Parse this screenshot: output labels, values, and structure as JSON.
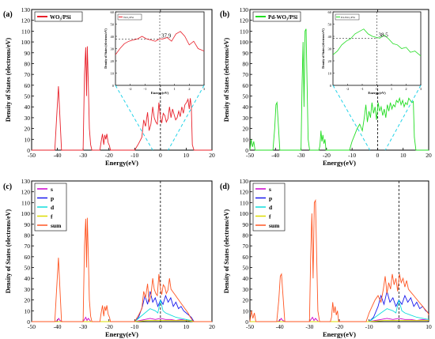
{
  "chart_data": [
    {
      "panel_label": "(a)",
      "type": "line",
      "xlabel": "Energy(eV)",
      "ylabel": "Density of States (electrons/eV)",
      "xlim": [
        -50,
        20
      ],
      "ylim": [
        0,
        130
      ],
      "xticks": [
        -50,
        -40,
        -30,
        -20,
        -10,
        0,
        10,
        20
      ],
      "yticks": [
        0,
        10,
        20,
        30,
        40,
        50,
        60,
        70,
        80,
        90,
        100,
        110,
        120,
        130
      ],
      "legend": [
        "WO₃/PSi"
      ],
      "series": [
        {
          "name": "WO₃/PSi",
          "color": "#e8202a",
          "x": [
            -50,
            -41,
            -40.3,
            -39.6,
            -39,
            -38.4,
            -30,
            -29.5,
            -29,
            -28.7,
            -28.4,
            -28,
            -27.6,
            -27.1,
            -26.6,
            -23.5,
            -23,
            -22.5,
            -22,
            -21.6,
            -21.2,
            -20.8,
            -20.3,
            -19.8,
            -19.4,
            -10,
            -8.5,
            -7.2,
            -6.5,
            -5.8,
            -5,
            -4.4,
            -3.7,
            -3,
            -2.4,
            -1.8,
            -1.2,
            -0.6,
            0,
            0.5,
            1.1,
            1.7,
            2.3,
            2.9,
            3.5,
            4.1,
            4.7,
            5.3,
            5.9,
            6.5,
            7.1,
            7.7,
            8.3,
            8.9,
            9.5,
            10.1,
            10.7,
            11.2,
            11.6,
            12,
            12.4,
            13,
            20
          ],
          "y": [
            0,
            0,
            30,
            59,
            30,
            0,
            0,
            70,
            95,
            50,
            96,
            60,
            20,
            5,
            0,
            0,
            8,
            15,
            5,
            14,
            10,
            15,
            7,
            4,
            0,
            0,
            6,
            12,
            28,
            22,
            35,
            18,
            24,
            40,
            30,
            26,
            24,
            44,
            30,
            25,
            34,
            32,
            26,
            29,
            40,
            30,
            38,
            33,
            28,
            30,
            36,
            31,
            40,
            34,
            42,
            44,
            47,
            38,
            48,
            40,
            5,
            0,
            0
          ]
        }
      ],
      "inset": {
        "xlabel": "Energy(eV)",
        "ylabel": "Density of States (electrons/eV)",
        "legend": "WO₃/PSi",
        "annotation": "37.9",
        "xlim": [
          -3,
          3
        ],
        "ylim": [
          0,
          60
        ],
        "xticks": [
          -2,
          -1,
          0,
          1,
          2,
          3
        ],
        "yticks": [
          0,
          10,
          20,
          30,
          40,
          50,
          60
        ],
        "x": [
          -3,
          -2.7,
          -2.4,
          -2.1,
          -1.8,
          -1.5,
          -1.2,
          -0.9,
          -0.6,
          -0.3,
          0,
          0.2,
          0.5,
          0.8,
          1.1,
          1.4,
          1.7,
          2,
          2.3,
          2.6,
          3
        ],
        "y": [
          25,
          30,
          34,
          36,
          37,
          38,
          40,
          38,
          37,
          36,
          38,
          37.9,
          39,
          36,
          42,
          44,
          40,
          33,
          36,
          30,
          28
        ]
      }
    },
    {
      "panel_label": "(b)",
      "type": "line",
      "xlabel": "Energy(eV)",
      "ylabel": "Density of States (electrons/eV)",
      "xlim": [
        -50,
        20
      ],
      "ylim": [
        0,
        130
      ],
      "xticks": [
        -50,
        -40,
        -30,
        -20,
        -10,
        0,
        10,
        20
      ],
      "yticks": [
        0,
        10,
        20,
        30,
        40,
        50,
        60,
        70,
        80,
        90,
        100,
        110,
        120,
        130
      ],
      "legend": [
        "Pd-WO₃/PSi"
      ],
      "series": [
        {
          "name": "Pd-WO₃/PSi",
          "color": "#22dd22",
          "x": [
            -50,
            -49.5,
            -49,
            -48.5,
            -48,
            -41,
            -40.3,
            -39.8,
            -39.4,
            -38.8,
            -38.3,
            -30,
            -29.6,
            -29.2,
            -28.8,
            -28.4,
            -28,
            -27.6,
            -27.2,
            -26.6,
            -23,
            -22.6,
            -22.2,
            -21.8,
            -21.4,
            -21,
            -20.6,
            -20.2,
            -11,
            -10,
            -9,
            -8,
            -7,
            -6,
            -5.2,
            -4.6,
            -4,
            -3.4,
            -2.8,
            -2.2,
            -1.6,
            -1,
            -0.4,
            0.2,
            0.8,
            1.4,
            2,
            2.6,
            3.2,
            3.8,
            4.4,
            5,
            5.6,
            6.2,
            6.8,
            7.4,
            8,
            8.6,
            9.2,
            9.8,
            10.4,
            11,
            11.6,
            12.2,
            12.8,
            13.4,
            14,
            14.4,
            15,
            20
          ],
          "y": [
            0,
            10,
            3,
            8,
            0,
            0,
            20,
            42,
            44,
            20,
            0,
            0,
            60,
            100,
            40,
            110,
            112,
            60,
            10,
            0,
            0,
            4,
            18,
            8,
            14,
            6,
            10,
            0,
            0,
            8,
            14,
            20,
            24,
            18,
            30,
            42,
            26,
            36,
            30,
            44,
            34,
            40,
            28,
            44,
            36,
            40,
            32,
            38,
            30,
            42,
            36,
            44,
            38,
            42,
            40,
            46,
            44,
            48,
            42,
            46,
            40,
            44,
            42,
            48,
            46,
            44,
            45,
            12,
            0,
            0
          ]
        }
      ],
      "inset": {
        "xlabel": "Energy(eV)",
        "ylabel": "Density of States (electrons/eV)",
        "legend": "Pd-WO₃/PSi",
        "annotation": "38.5",
        "xlim": [
          -3,
          3
        ],
        "ylim": [
          0,
          60
        ],
        "xticks": [
          -2,
          -1,
          0,
          1,
          2,
          3
        ],
        "yticks": [
          0,
          10,
          20,
          30,
          40,
          50,
          60
        ],
        "x": [
          -3,
          -2.7,
          -2.4,
          -2.1,
          -1.8,
          -1.5,
          -1.2,
          -0.9,
          -0.6,
          -0.3,
          0,
          0.2,
          0.5,
          0.8,
          1.1,
          1.4,
          1.7,
          2,
          2.3,
          2.6,
          3
        ],
        "y": [
          25,
          28,
          33,
          36,
          38,
          42,
          44,
          46,
          42,
          40,
          39,
          38.5,
          41,
          38,
          34,
          33,
          30,
          31,
          27,
          28,
          24
        ]
      }
    },
    {
      "panel_label": "(c)",
      "type": "line",
      "xlabel": "Energy(eV)",
      "ylabel": "Density of States (electrons/eV)",
      "xlim": [
        -50,
        20
      ],
      "ylim": [
        0,
        130
      ],
      "xticks": [
        -50,
        -40,
        -30,
        -20,
        -10,
        0,
        10,
        20
      ],
      "yticks": [
        0,
        10,
        20,
        30,
        40,
        50,
        60,
        70,
        80,
        90,
        100,
        110,
        120,
        130
      ],
      "legend": [
        "s",
        "p",
        "d",
        "f",
        "sum"
      ],
      "series": [
        {
          "name": "s",
          "color": "#cc00cc",
          "x": [
            -50,
            -41,
            -40,
            -39.5,
            -39,
            -38,
            -30,
            -29.5,
            -29,
            -28.5,
            -28,
            -27,
            -10,
            -8,
            -6,
            -4,
            -2,
            0,
            2,
            4,
            6,
            8,
            10,
            12,
            13,
            20
          ],
          "y": [
            0,
            0,
            1,
            3,
            1,
            0,
            0,
            2,
            4,
            1,
            3,
            0,
            0,
            1,
            2,
            3,
            2,
            3,
            2,
            2,
            1,
            2,
            1,
            1,
            0,
            0
          ]
        },
        {
          "name": "p",
          "color": "#1a1aee",
          "x": [
            -50,
            -10,
            -8.5,
            -7,
            -6,
            -5,
            -4,
            -3,
            -2,
            -1,
            0,
            1,
            2,
            3,
            4,
            5,
            6,
            7,
            8,
            9,
            10,
            11,
            12,
            13,
            20
          ],
          "y": [
            0,
            0,
            4,
            14,
            24,
            16,
            28,
            18,
            22,
            14,
            20,
            16,
            24,
            18,
            22,
            14,
            18,
            12,
            14,
            10,
            8,
            6,
            4,
            0,
            0
          ]
        },
        {
          "name": "d",
          "color": "#11dddd",
          "x": [
            -50,
            -10,
            -8,
            -6,
            -4,
            -2,
            -1,
            0,
            1,
            2,
            4,
            6,
            8,
            10,
            12,
            13,
            20
          ],
          "y": [
            0,
            0,
            4,
            8,
            12,
            10,
            8,
            20,
            10,
            8,
            6,
            4,
            3,
            2,
            1,
            0,
            0
          ]
        },
        {
          "name": "f",
          "color": "#dddd00",
          "x": [
            -50,
            -10,
            -5,
            0,
            5,
            10,
            13,
            20
          ],
          "y": [
            0,
            0,
            1,
            1,
            1,
            1,
            0,
            0
          ]
        },
        {
          "name": "sum",
          "color": "#ff5522",
          "x": [
            -50,
            -41,
            -40.3,
            -39.6,
            -39,
            -38.4,
            -30,
            -29.5,
            -29,
            -28.7,
            -28.4,
            -28,
            -27.6,
            -27.1,
            -26.6,
            -23.5,
            -23,
            -22.5,
            -22,
            -21.6,
            -21.2,
            -20.8,
            -20.3,
            -19.8,
            -19.4,
            -10,
            -8.5,
            -7.2,
            -6.5,
            -5.8,
            -5,
            -4.4,
            -3.7,
            -3,
            -2.4,
            -1.8,
            -1.2,
            -0.6,
            0,
            0.5,
            1.1,
            1.7,
            2.3,
            2.9,
            3.5,
            4.1,
            4.7,
            5.3,
            5.9,
            6.5,
            7.1,
            7.7,
            8.3,
            8.9,
            9.5,
            10.1,
            10.7,
            11.2,
            11.6,
            12,
            12.4,
            13,
            20
          ],
          "y": [
            0,
            0,
            30,
            59,
            30,
            0,
            0,
            70,
            95,
            50,
            96,
            60,
            20,
            5,
            0,
            0,
            8,
            15,
            5,
            14,
            10,
            15,
            7,
            4,
            0,
            0,
            6,
            12,
            28,
            22,
            35,
            18,
            24,
            40,
            30,
            26,
            24,
            44,
            30,
            25,
            34,
            32,
            26,
            29,
            40,
            30,
            28,
            26,
            24,
            22,
            20,
            18,
            16,
            14,
            12,
            10,
            8,
            6,
            4,
            3,
            1,
            0,
            0
          ]
        }
      ]
    },
    {
      "panel_label": "(d)",
      "type": "line",
      "xlabel": "Energy(eV)",
      "ylabel": "Density of States (electrons/eV)",
      "xlim": [
        -50,
        10
      ],
      "ylim": [
        0,
        130
      ],
      "xticks": [
        -50,
        -40,
        -30,
        -20,
        -10,
        0,
        10
      ],
      "yticks": [
        0,
        10,
        20,
        30,
        40,
        50,
        60,
        70,
        80,
        90,
        100,
        110,
        120,
        130
      ],
      "legend": [
        "s",
        "p",
        "d",
        "f",
        "sum"
      ],
      "series": [
        {
          "name": "s",
          "color": "#cc00cc",
          "x": [
            -50,
            -41,
            -40,
            -39.5,
            -39,
            -38,
            -30,
            -29.5,
            -29,
            -28.5,
            -28,
            -27,
            -10,
            -8,
            -6,
            -4,
            -2,
            0,
            2,
            4,
            6,
            8,
            10
          ],
          "y": [
            0,
            0,
            1,
            3,
            1,
            0,
            0,
            2,
            4,
            1,
            3,
            0,
            0,
            1,
            2,
            3,
            2,
            3,
            2,
            2,
            1,
            2,
            1
          ]
        },
        {
          "name": "p",
          "color": "#1a1aee",
          "x": [
            -50,
            -10,
            -8.5,
            -7,
            -6,
            -5,
            -4,
            -3,
            -2,
            -1,
            0,
            1,
            2,
            3,
            4,
            5,
            6,
            7,
            8,
            9,
            10
          ],
          "y": [
            0,
            0,
            4,
            14,
            24,
            16,
            28,
            18,
            22,
            14,
            20,
            16,
            24,
            18,
            22,
            14,
            18,
            12,
            14,
            10,
            8
          ]
        },
        {
          "name": "d",
          "color": "#11dddd",
          "x": [
            -50,
            -10,
            -8,
            -6,
            -4,
            -2,
            -1,
            0,
            1,
            2,
            4,
            6,
            8,
            10
          ],
          "y": [
            0,
            0,
            4,
            8,
            12,
            10,
            8,
            20,
            10,
            8,
            6,
            4,
            3,
            2
          ]
        },
        {
          "name": "f",
          "color": "#dddd00",
          "x": [
            -50,
            -10,
            -5,
            0,
            5,
            10
          ],
          "y": [
            0,
            0,
            1,
            1,
            1,
            1
          ]
        },
        {
          "name": "sum",
          "color": "#ff5522",
          "x": [
            -50,
            -49.5,
            -49,
            -48.5,
            -48,
            -41,
            -40.3,
            -39.8,
            -39.4,
            -38.8,
            -38.3,
            -30,
            -29.6,
            -29.2,
            -28.8,
            -28.4,
            -28,
            -27.6,
            -27.2,
            -26.6,
            -23,
            -22.6,
            -22.2,
            -21.8,
            -21.4,
            -21,
            -20.6,
            -20.2,
            -11,
            -10,
            -9,
            -8,
            -7,
            -6,
            -5.2,
            -4.6,
            -4,
            -3.4,
            -2.8,
            -2.2,
            -1.6,
            -1,
            -0.4,
            0.2,
            0.8,
            1.4,
            2,
            2.6,
            3.2,
            3.8,
            4.4,
            5,
            5.6,
            6.2,
            6.8,
            7.4,
            8,
            8.6,
            9.2,
            9.8,
            10
          ],
          "y": [
            0,
            10,
            3,
            8,
            0,
            0,
            20,
            42,
            44,
            20,
            0,
            0,
            60,
            100,
            40,
            110,
            112,
            60,
            10,
            0,
            0,
            4,
            18,
            8,
            14,
            6,
            10,
            0,
            0,
            8,
            14,
            20,
            24,
            18,
            30,
            42,
            26,
            36,
            30,
            44,
            34,
            40,
            28,
            44,
            36,
            40,
            32,
            38,
            30,
            28,
            26,
            24,
            22,
            20,
            18,
            16,
            14,
            12,
            10,
            8,
            6
          ]
        }
      ]
    }
  ]
}
